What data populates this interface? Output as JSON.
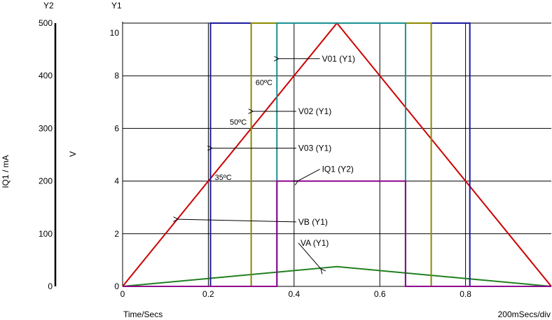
{
  "chart_data": {
    "type": "line",
    "x_axis": {
      "label": "Time/Secs",
      "range": [
        0,
        1.0
      ],
      "ticks": [
        0,
        0.2,
        0.4,
        0.6,
        0.8
      ],
      "tick_labels": [
        "0",
        "0.2",
        "0.4",
        "0.6",
        "0.8"
      ],
      "scale_label": "200mSecs/div"
    },
    "y1_axis": {
      "name": "Y1",
      "label": "V",
      "range": [
        0,
        10
      ],
      "ticks": [
        0,
        2,
        4,
        6,
        8,
        10
      ],
      "tick_labels": [
        "0",
        "2",
        "4",
        "6",
        "8",
        "10"
      ]
    },
    "y2_axis": {
      "name": "Y2",
      "label": "IQ1 / mA",
      "range": [
        0,
        500
      ],
      "ticks": [
        0,
        100,
        200,
        300,
        400,
        500
      ],
      "tick_labels": [
        "0",
        "100",
        "200",
        "300",
        "400",
        "500"
      ]
    },
    "grid": true,
    "series": [
      {
        "name": "VB (Y1)",
        "axis": "y1",
        "color": "#cc0000",
        "x": [
          0,
          0.5,
          1.0
        ],
        "y": [
          0,
          10,
          0
        ]
      },
      {
        "name": "VA (Y1)",
        "axis": "y1",
        "color": "#208020",
        "x": [
          0,
          0.5,
          1.0
        ],
        "y": [
          0,
          0.75,
          0
        ]
      },
      {
        "name": "V03 (Y1)",
        "axis": "y1",
        "color": "#1a1aa0",
        "x": [
          0,
          0.205,
          0.205,
          0.81,
          0.81,
          1.0
        ],
        "y": [
          0,
          0,
          10,
          10,
          0,
          0
        ]
      },
      {
        "name": "V02 (Y1)",
        "axis": "y1",
        "color": "#8a8a00",
        "x": [
          0,
          0.3,
          0.3,
          0.72,
          0.72,
          1.0
        ],
        "y": [
          0,
          0,
          10,
          10,
          0,
          0
        ]
      },
      {
        "name": "V01 (Y1)",
        "axis": "y1",
        "color": "#1a9090",
        "x": [
          0,
          0.36,
          0.36,
          0.66,
          0.66,
          1.0
        ],
        "y": [
          0,
          0,
          10,
          10,
          0,
          0
        ]
      },
      {
        "name": "IQ1 (Y2)",
        "axis": "y2",
        "color": "#900090",
        "x": [
          0,
          0.36,
          0.36,
          0.66,
          0.66,
          1.0
        ],
        "y": [
          0,
          0,
          200,
          200,
          0,
          0
        ]
      }
    ],
    "annotations": [
      {
        "text": "35ºC",
        "x": 0.215,
        "y": 4.15
      },
      {
        "text": "50ºC",
        "x": 0.25,
        "y": 6.25
      },
      {
        "text": "60ºC",
        "x": 0.31,
        "y": 7.75
      },
      {
        "series": "V01 (Y1)",
        "label": "V01 (Y1)",
        "arrow_to": [
          0.36,
          8.65
        ],
        "text_at": [
          0.465,
          8.65
        ]
      },
      {
        "series": "V02 (Y1)",
        "label": "V02 (Y1)",
        "arrow_to": [
          0.3,
          6.65
        ],
        "text_at": [
          0.41,
          6.65
        ]
      },
      {
        "series": "V03 (Y1)",
        "label": "V03 (Y1)",
        "arrow_to": [
          0.205,
          5.25
        ],
        "text_at": [
          0.41,
          5.25
        ]
      },
      {
        "series": "IQ1 (Y2)",
        "label": "IQ1 (Y2)",
        "arrow_to": [
          0.405,
          4.0
        ],
        "text_at": [
          0.465,
          4.45
        ]
      },
      {
        "series": "VB (Y1)",
        "label": "VB (Y1)",
        "arrow_to": [
          0.125,
          2.55
        ],
        "text_at": [
          0.41,
          2.45
        ]
      },
      {
        "series": "VA (Y1)",
        "label": "VA (Y1)",
        "arrow_to": [
          0.46,
          0.65
        ],
        "text_at": [
          0.415,
          1.65
        ]
      }
    ]
  }
}
